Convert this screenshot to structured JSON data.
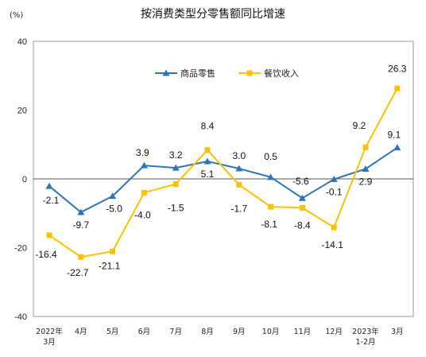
{
  "chart_data": {
    "type": "line",
    "title": "按消费类型分零售额同比增速",
    "unit": "(%)",
    "categories": [
      "2022年\n3月",
      "4月",
      "5月",
      "6月",
      "7月",
      "8月",
      "9月",
      "10月",
      "11月",
      "12月",
      "2023年\n1-2月",
      "3月"
    ],
    "series": [
      {
        "name": "商品零售",
        "color": "#2e75b6",
        "marker": "triangle",
        "values": [
          -2.1,
          -9.7,
          -5.0,
          3.9,
          3.2,
          5.1,
          3.0,
          0.5,
          -5.6,
          -0.1,
          2.9,
          9.1
        ],
        "labels": [
          "-2.1",
          "-9.7",
          "-5.0",
          "3.9",
          "3.2",
          "5.1",
          "3.0",
          "0.5",
          "-5.6",
          "-0.1",
          "2.9",
          "9.1"
        ]
      },
      {
        "name": "餐饮收入",
        "color": "#ffc000",
        "marker": "square",
        "values": [
          -16.4,
          -22.7,
          -21.1,
          -4.0,
          -1.5,
          8.4,
          -1.7,
          -8.1,
          -8.4,
          -14.1,
          9.2,
          26.3
        ],
        "labels": [
          "-16.4",
          "-22.7",
          "-21.1",
          "-4.0",
          "-1.5",
          "8.4",
          "-1.7",
          "-8.1",
          "-8.4",
          "-14.1",
          "9.2",
          "26.3"
        ]
      }
    ],
    "ylim": [
      -40,
      40
    ],
    "yticks": [
      "40",
      "20",
      "0",
      "-20",
      "-40"
    ],
    "grid": false,
    "legend": "top-center"
  }
}
